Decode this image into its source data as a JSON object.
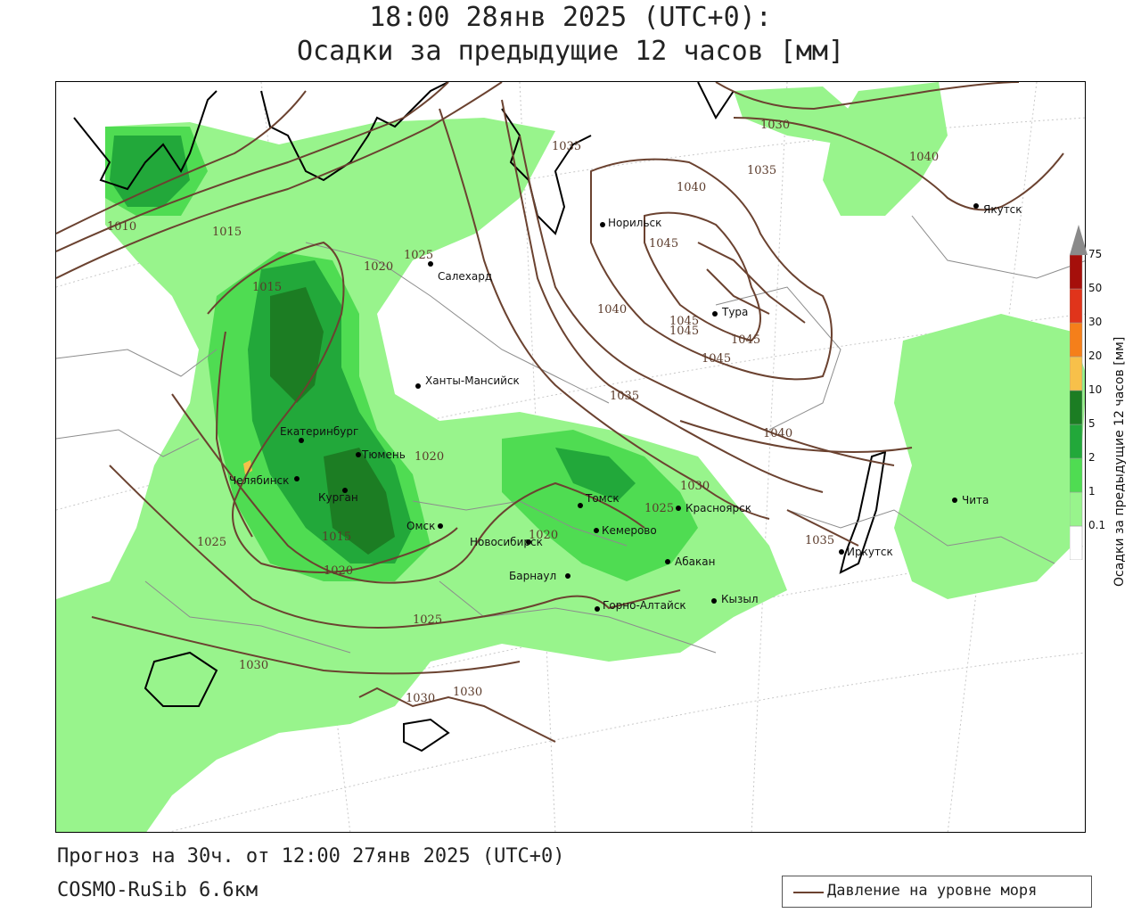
{
  "header": {
    "title_line1": "18:00 28янв 2025 (UTC+0):",
    "title_line2": "Осадки за предыдущие 12 часов [мм]"
  },
  "footer": {
    "forecast_text": "Прогноз на 30ч. от 12:00 27янв 2025 (UTC+0)",
    "model_text": "COSMO-RuSib 6.6км",
    "legend_label": "Давление на уровне моря"
  },
  "colorbar": {
    "title": "Осадки за предыдущие 12 часов [мм]",
    "levels": [
      "0.1",
      "1",
      "2",
      "5",
      "10",
      "20",
      "30",
      "50",
      "75"
    ],
    "colors": [
      "#ffffff",
      "#98f48c",
      "#4fdc52",
      "#22a83a",
      "#1c7d23",
      "#f7c04a",
      "#f57f1a",
      "#e0341b",
      "#a50f0b",
      "#8a8a8a"
    ]
  },
  "colors": {
    "precip_light": "#98f48c",
    "precip_mid": "#4fdc52",
    "precip_dark": "#22a83a",
    "precip_darkest": "#1c7d23",
    "isobar": "#6b4230",
    "coast": "#000000",
    "borders": "#888888"
  },
  "cities": [
    {
      "name": "Якутск"
    },
    {
      "name": "Норильск"
    },
    {
      "name": "Тура"
    },
    {
      "name": "Салехард"
    },
    {
      "name": "Ханты-Мансийск"
    },
    {
      "name": "Екатеринбург"
    },
    {
      "name": "Тюмень"
    },
    {
      "name": "Челябинск"
    },
    {
      "name": "Курган"
    },
    {
      "name": "Омск"
    },
    {
      "name": "Новосибирск"
    },
    {
      "name": "Томск"
    },
    {
      "name": "Кемерово"
    },
    {
      "name": "Красноярск"
    },
    {
      "name": "Абакан"
    },
    {
      "name": "Барнаул"
    },
    {
      "name": "Горно-Алтайск"
    },
    {
      "name": "Кызыл"
    },
    {
      "name": "Иркутск"
    },
    {
      "name": "Чита"
    }
  ],
  "isobar_labels": [
    "1030",
    "1035",
    "1040",
    "1035",
    "1040",
    "1010",
    "1015",
    "1015",
    "1020",
    "1025",
    "1045",
    "1040",
    "1045",
    "1045",
    "1045",
    "1045",
    "1035",
    "1040",
    "1020",
    "1030",
    "1025",
    "1020",
    "1025",
    "1015",
    "1020",
    "1025",
    "1030",
    "1030",
    "1030",
    "1035"
  ]
}
